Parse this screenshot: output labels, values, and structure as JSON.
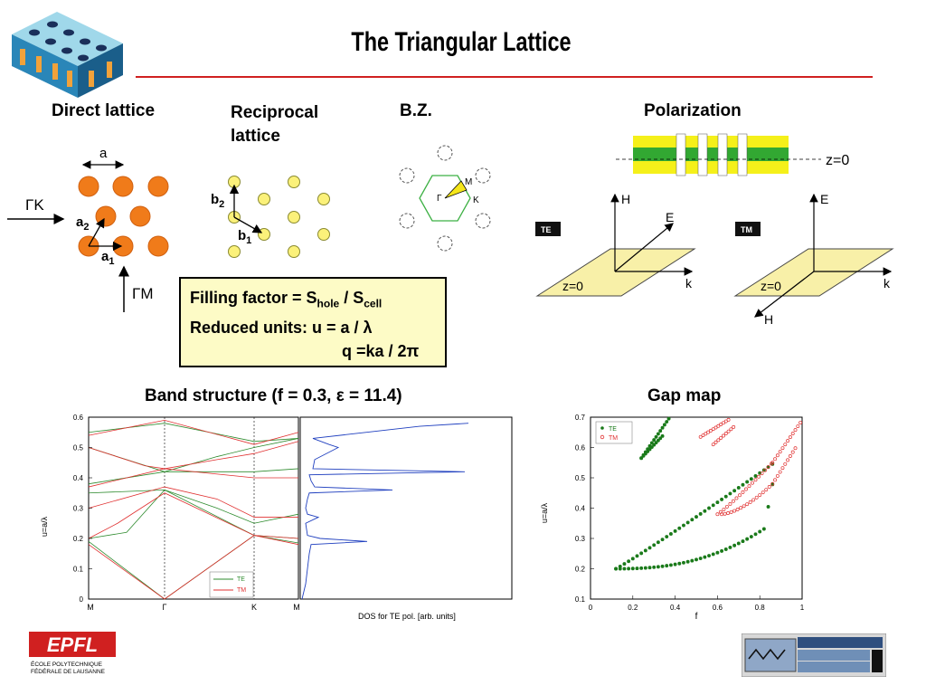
{
  "title": "The Triangular Lattice",
  "headings": {
    "direct": "Direct lattice",
    "reciprocal": "Reciprocal lattice",
    "bz": "B.Z.",
    "polarization": "Polarization",
    "band": "Band structure (f = 0.3, ε = 11.4)",
    "gap": "Gap map"
  },
  "direct": {
    "a": "a",
    "a1": "a",
    "a1_sub": "1",
    "a2": "a",
    "a2_sub": "2",
    "gk": "ΓK",
    "gm": "ΓM"
  },
  "reciprocal": {
    "b1": "b",
    "b1_sub": "1",
    "b2": "b",
    "b2_sub": "2"
  },
  "bz": {
    "m": "M",
    "k": "K",
    "g": "Γ"
  },
  "infobox": {
    "line1": "Filling factor = S",
    "line1_sub1": "hole",
    "line1_mid": " / S",
    "line1_sub2": "cell",
    "line2": "Reduced units: u = a / λ",
    "line3": "q =ka / 2π"
  },
  "polarization": {
    "z0_label": "z=0",
    "te_badge": "TE",
    "tm_badge": "TM",
    "te_h": "H",
    "te_e": "E",
    "te_k": "k",
    "te_z0": "z=0",
    "tm_e": "E",
    "tm_h": "H",
    "tm_k": "k",
    "tm_z0": "z=0"
  },
  "band_plot": {
    "ylabel": "u=a/λ",
    "xlabel": "DOS for TE pol. [arb. units]",
    "points": [
      "M",
      "Γ",
      "K",
      "M"
    ],
    "yticks": [
      "0",
      "0.1",
      "0.2",
      "0.3",
      "0.4",
      "0.5",
      "0.6"
    ],
    "legend": [
      {
        "name": "TE",
        "color": "#2e8b2e"
      },
      {
        "name": "TM",
        "color": "#e03030"
      }
    ]
  },
  "gap_plot": {
    "ylabel": "u=a/λ",
    "xlabel": "f",
    "xticks": [
      "0",
      "0.2",
      "0.4",
      "0.6",
      "0.8",
      "1"
    ],
    "yticks": [
      "0.1",
      "0.2",
      "0.3",
      "0.4",
      "0.5",
      "0.6",
      "0.7"
    ],
    "legend": [
      {
        "name": "TE",
        "color": "#1a7a1a"
      },
      {
        "name": "TM",
        "color": "#e03030"
      }
    ]
  },
  "chart_data": [
    {
      "type": "line",
      "ylabel": "u=a/λ",
      "ylim": [
        0,
        0.6
      ],
      "x": [
        "M",
        "Γ",
        "K",
        "M"
      ],
      "series": [
        {
          "name": "TE",
          "values": [
            0.19,
            0.0,
            0.21,
            0.19
          ]
        },
        {
          "name": "TM",
          "values": [
            0.18,
            0.0,
            0.21,
            0.2
          ]
        }
      ]
    },
    {
      "type": "scatter",
      "xlabel": "f",
      "ylabel": "u=a/λ",
      "xlim": [
        0,
        1
      ],
      "ylim": [
        0.1,
        0.7
      ],
      "series": [
        {
          "name": "TE",
          "x": [
            0.12,
            0.2,
            0.35,
            0.5,
            0.65,
            0.75,
            0.83,
            0.88,
            0.9,
            0.83,
            0.7,
            0.5,
            0.3,
            0.12
          ],
          "y": [
            0.2,
            0.22,
            0.27,
            0.34,
            0.42,
            0.49,
            0.55,
            0.555,
            0.555,
            0.36,
            0.3,
            0.25,
            0.22,
            0.2
          ]
        },
        {
          "name": "TM",
          "x": [
            0.6,
            0.7,
            0.8,
            0.86,
            0.92,
            0.96,
            1.0,
            0.95,
            0.9,
            0.86,
            0.8,
            0.7,
            0.62
          ],
          "y": [
            0.38,
            0.43,
            0.48,
            0.52,
            0.57,
            0.62,
            0.69,
            0.62,
            0.56,
            0.48,
            0.44,
            0.4,
            0.38
          ]
        }
      ]
    }
  ]
}
